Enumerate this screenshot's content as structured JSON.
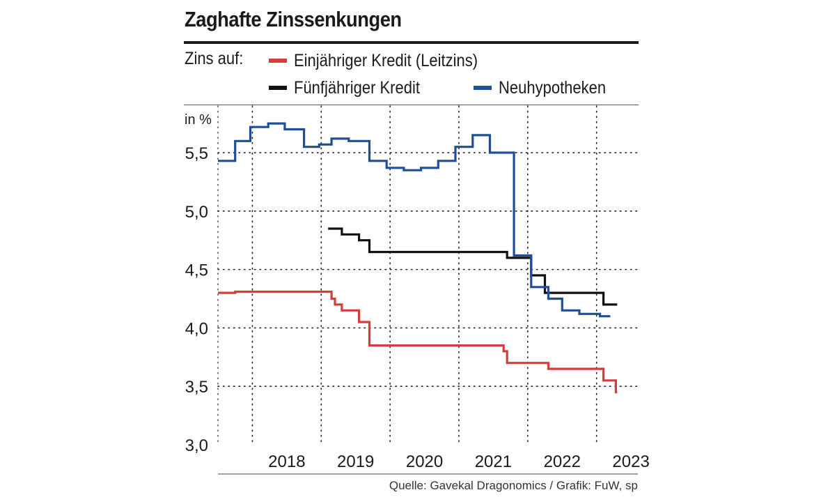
{
  "title": "Zaghafte Zinssenkungen",
  "legend": {
    "caption": "Zins auf:",
    "items": [
      {
        "label": "Einjähriger Kredit (Leitzins)",
        "color": "#d63c3c"
      },
      {
        "label": "Fünfjähriger Kredit",
        "color": "#111111"
      },
      {
        "label": "Neuhypotheken",
        "color": "#1f4e99"
      }
    ]
  },
  "source": "Quelle: Gavekal Dragonomics / Grafik: FuW, sp",
  "chart_data": {
    "type": "line",
    "step": true,
    "unit_label": "in %",
    "ylim": [
      3.0,
      5.9
    ],
    "xlim": [
      2017.5,
      2023.6
    ],
    "y_ticks": [
      {
        "value": 3.0,
        "label": "3,0"
      },
      {
        "value": 3.5,
        "label": "3,5"
      },
      {
        "value": 4.0,
        "label": "4,0"
      },
      {
        "value": 4.5,
        "label": "4,5"
      },
      {
        "value": 5.0,
        "label": "5,0"
      },
      {
        "value": 5.5,
        "label": "5,5"
      }
    ],
    "x_ticks": [
      "2018",
      "2019",
      "2020",
      "2021",
      "2022",
      "2023"
    ],
    "grid": "dotted",
    "series": [
      {
        "name": "Einjähriger Kredit (Leitzins)",
        "color": "#d63c3c",
        "points": [
          [
            2017.5,
            4.3
          ],
          [
            2017.75,
            4.31
          ],
          [
            2019.15,
            4.25
          ],
          [
            2019.2,
            4.2
          ],
          [
            2019.3,
            4.15
          ],
          [
            2019.55,
            4.05
          ],
          [
            2019.7,
            3.85
          ],
          [
            2021.65,
            3.8
          ],
          [
            2021.7,
            3.7
          ],
          [
            2022.3,
            3.65
          ],
          [
            2023.1,
            3.55
          ],
          [
            2023.28,
            3.45
          ],
          [
            2023.3,
            3.45
          ]
        ]
      },
      {
        "name": "Fünfjähriger Kredit",
        "color": "#111111",
        "points": [
          [
            2019.1,
            4.85
          ],
          [
            2019.3,
            4.8
          ],
          [
            2019.55,
            4.75
          ],
          [
            2019.7,
            4.65
          ],
          [
            2021.7,
            4.6
          ],
          [
            2022.05,
            4.45
          ],
          [
            2022.25,
            4.3
          ],
          [
            2023.1,
            4.2
          ],
          [
            2023.3,
            4.2
          ]
        ]
      },
      {
        "name": "Neuhypotheken",
        "color": "#1f4e99",
        "points": [
          [
            2017.5,
            5.43
          ],
          [
            2017.75,
            5.6
          ],
          [
            2017.97,
            5.72
          ],
          [
            2018.23,
            5.75
          ],
          [
            2018.47,
            5.7
          ],
          [
            2018.75,
            5.55
          ],
          [
            2018.97,
            5.57
          ],
          [
            2019.15,
            5.62
          ],
          [
            2019.4,
            5.6
          ],
          [
            2019.7,
            5.43
          ],
          [
            2019.95,
            5.37
          ],
          [
            2020.2,
            5.35
          ],
          [
            2020.45,
            5.37
          ],
          [
            2020.7,
            5.43
          ],
          [
            2020.95,
            5.55
          ],
          [
            2021.2,
            5.65
          ],
          [
            2021.45,
            5.5
          ],
          [
            2021.8,
            4.62
          ],
          [
            2022.05,
            4.35
          ],
          [
            2022.3,
            4.25
          ],
          [
            2022.5,
            4.15
          ],
          [
            2022.75,
            4.12
          ],
          [
            2023.05,
            4.1
          ],
          [
            2023.2,
            4.1
          ]
        ]
      }
    ]
  }
}
